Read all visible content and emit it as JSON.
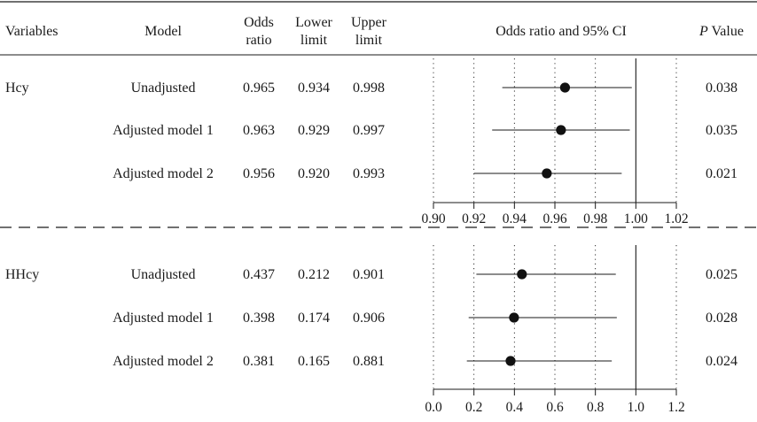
{
  "headers": {
    "variables": "Variables",
    "model": "Model",
    "odds_ratio": [
      "Odds",
      "ratio"
    ],
    "lower_limit": [
      "Lower",
      "limit"
    ],
    "upper_limit": [
      "Upper",
      "limit"
    ],
    "plot": "Odds ratio and 95% CI",
    "p_value_italic": "P",
    "p_value_rest": " Value"
  },
  "chart_data": [
    {
      "type": "scatter",
      "subtype": "forest-plot",
      "variable": "Hcy",
      "xlim": [
        0.9,
        1.02
      ],
      "xticks": [
        "0.90",
        "0.92",
        "0.94",
        "0.96",
        "0.98",
        "1.00",
        "1.02"
      ],
      "reference_line": 1.0,
      "rows": [
        {
          "model": "Unadjusted",
          "or": 0.965,
          "lower": 0.934,
          "upper": 0.998,
          "or_text": "0.965",
          "lower_text": "0.934",
          "upper_text": "0.998",
          "p_text": "0.038"
        },
        {
          "model": "Adjusted model 1",
          "or": 0.963,
          "lower": 0.929,
          "upper": 0.997,
          "or_text": "0.963",
          "lower_text": "0.929",
          "upper_text": "0.997",
          "p_text": "0.035"
        },
        {
          "model": "Adjusted model 2",
          "or": 0.956,
          "lower": 0.92,
          "upper": 0.993,
          "or_text": "0.956",
          "lower_text": "0.920",
          "upper_text": "0.993",
          "p_text": "0.021"
        }
      ]
    },
    {
      "type": "scatter",
      "subtype": "forest-plot",
      "variable": "HHcy",
      "xlim": [
        0.0,
        1.2
      ],
      "xticks": [
        "0.0",
        "0.2",
        "0.4",
        "0.6",
        "0.8",
        "1.0",
        "1.2"
      ],
      "reference_line": 1.0,
      "rows": [
        {
          "model": "Unadjusted",
          "or": 0.437,
          "lower": 0.212,
          "upper": 0.901,
          "or_text": "0.437",
          "lower_text": "0.212",
          "upper_text": "0.901",
          "p_text": "0.025"
        },
        {
          "model": "Adjusted model 1",
          "or": 0.398,
          "lower": 0.174,
          "upper": 0.906,
          "or_text": "0.398",
          "lower_text": "0.174",
          "upper_text": "0.906",
          "p_text": "0.028"
        },
        {
          "model": "Adjusted model 2",
          "or": 0.381,
          "lower": 0.165,
          "upper": 0.881,
          "or_text": "0.381",
          "lower_text": "0.165",
          "upper_text": "0.881",
          "p_text": "0.024"
        }
      ]
    }
  ]
}
